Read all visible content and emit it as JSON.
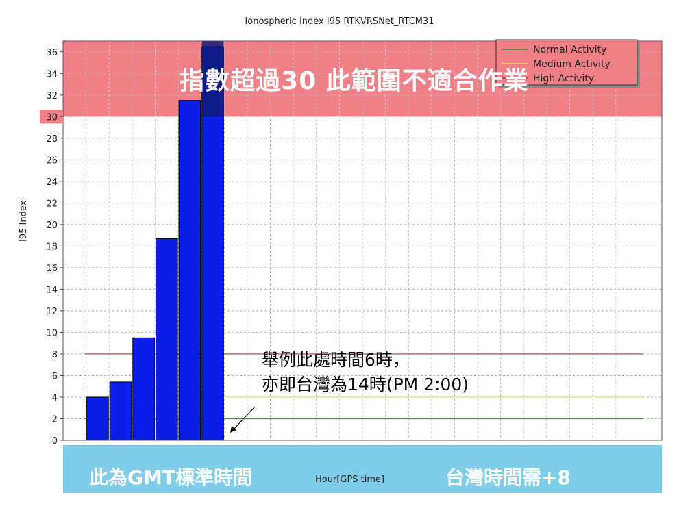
{
  "chart_data": {
    "type": "bar",
    "title": "Ionospheric Index I95 RTKVRSNet_RTCM31",
    "xlabel": "Hour[GPS time]",
    "ylabel": "I95 Index",
    "x": [
      0.5,
      1.5,
      2.5,
      3.5,
      4.5,
      5.5
    ],
    "values": [
      4.0,
      5.4,
      9.5,
      18.7,
      31.5,
      36.5
    ],
    "xlim": [
      -1,
      25
    ],
    "ylim": [
      0,
      37
    ],
    "xticks": [
      0,
      2,
      4,
      6,
      8,
      10,
      12,
      14,
      16,
      18,
      20,
      22
    ],
    "yticks": [
      0,
      2,
      4,
      6,
      8,
      10,
      12,
      14,
      16,
      18,
      20,
      22,
      24,
      26,
      28,
      30,
      32,
      34,
      36
    ],
    "grid": true,
    "bar_color": "#0a1ee8",
    "highlight_band": {
      "from": 30,
      "to": 37,
      "color": "#f07f87"
    },
    "reference_lines": [
      {
        "name": "Normal Activity",
        "value": 2,
        "color": "#3c8a3c"
      },
      {
        "name": "Medium Activity",
        "value": 4,
        "color": "#e6df6a"
      },
      {
        "name": "High Activity",
        "value": 8,
        "color": "#9b3a3a"
      }
    ],
    "legend": {
      "placement": "top-right",
      "entries": [
        "Normal Activity",
        "Medium Activity",
        "High Activity"
      ]
    }
  },
  "overlay": {
    "banner": "指數超過30 此範圍不適合作業",
    "annotation_line1": "舉例此處時間6時，",
    "annotation_line2": "亦即台灣為14時(PM 2:00)",
    "bottom_left": "此為GMT標準時間",
    "bottom_right": "台灣時間需+8"
  }
}
